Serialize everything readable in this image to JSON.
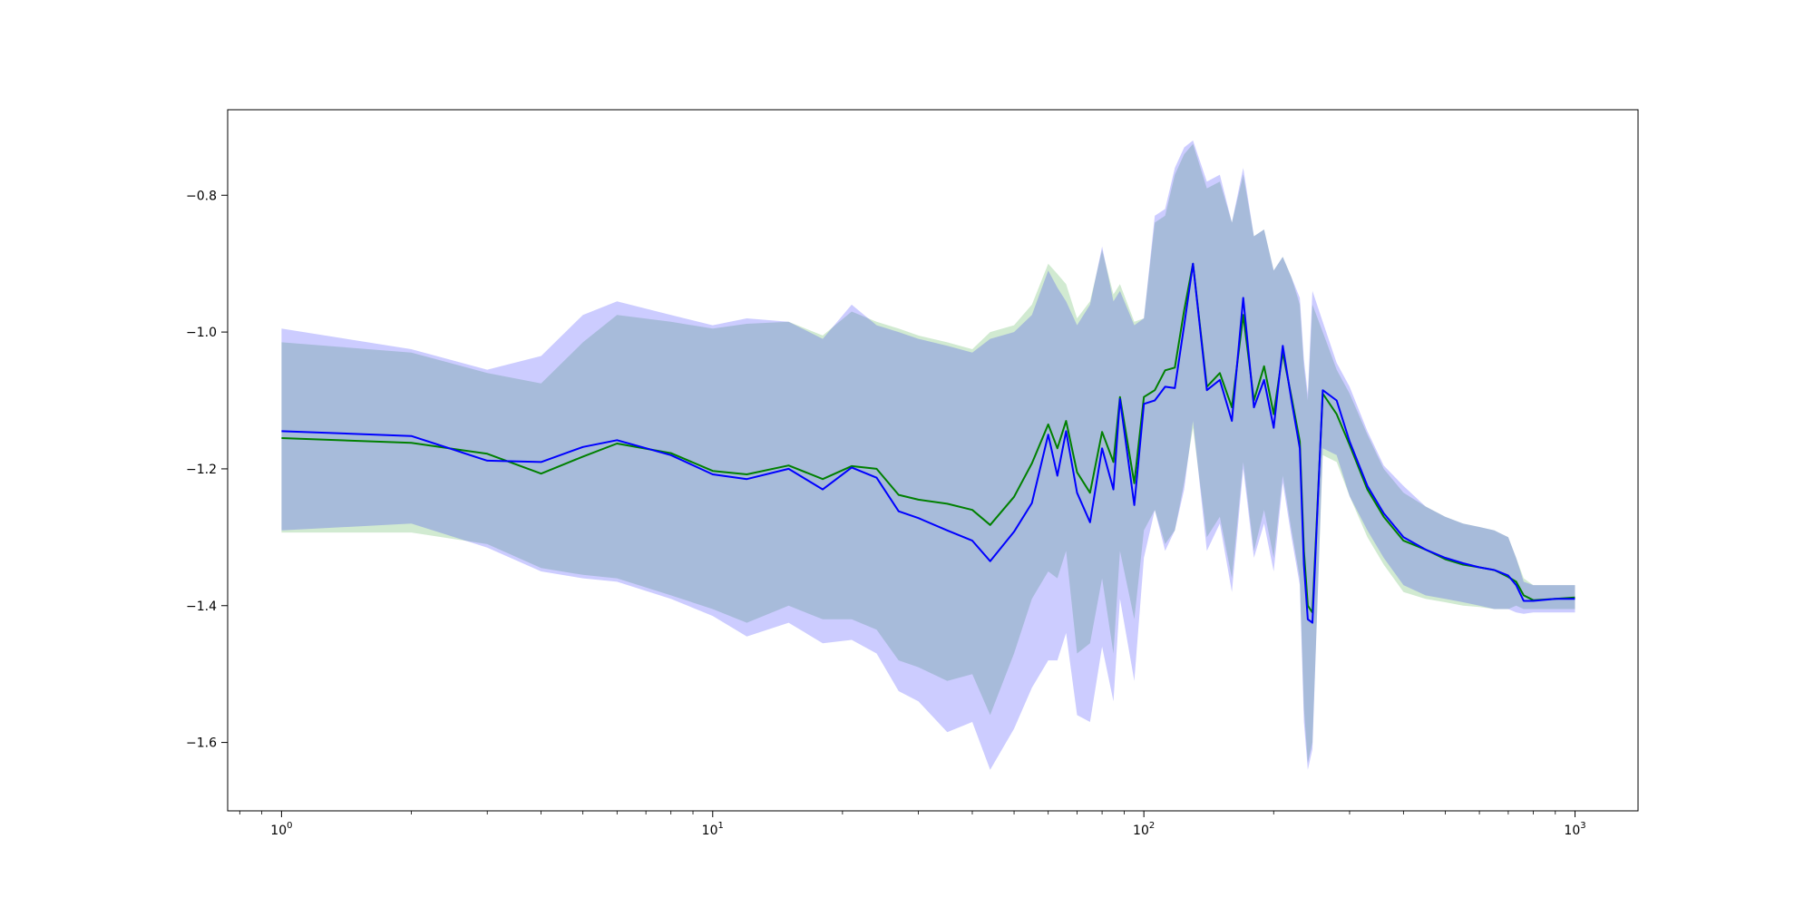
{
  "chart_data": {
    "type": "line",
    "title": "",
    "xlabel": "",
    "ylabel": "",
    "x_scale": "log",
    "xlim": [
      0.75,
      1400
    ],
    "ylim": [
      -1.7,
      -0.675
    ],
    "grid": false,
    "x_ticks": [
      {
        "value": 1,
        "base": "10",
        "exp": "0"
      },
      {
        "value": 10,
        "base": "10",
        "exp": "1"
      },
      {
        "value": 100,
        "base": "10",
        "exp": "2"
      },
      {
        "value": 1000,
        "base": "10",
        "exp": "3"
      }
    ],
    "y_ticks": [
      {
        "value": -0.8,
        "label": "−0.8"
      },
      {
        "value": -1.0,
        "label": "−1.0"
      },
      {
        "value": -1.2,
        "label": "−1.2"
      },
      {
        "value": -1.4,
        "label": "−1.4"
      },
      {
        "value": -1.6,
        "label": "−1.6"
      }
    ],
    "colors": {
      "green_line": "#008000",
      "green_band": "#2ca02c",
      "blue_line": "#0000ff",
      "blue_band": "#0000ff"
    },
    "series": [
      {
        "color": "#008000",
        "x": [
          1,
          2,
          3,
          4,
          5,
          6,
          8,
          10,
          12,
          15,
          18,
          21,
          24,
          27,
          30,
          35,
          40,
          44,
          50,
          55,
          60,
          63,
          66,
          70,
          75,
          80,
          85,
          88,
          95,
          100,
          106,
          112,
          118,
          124,
          130,
          140,
          150,
          160,
          170,
          180,
          190,
          200,
          210,
          220,
          230,
          235,
          240,
          246,
          260,
          280,
          300,
          330,
          360,
          400,
          450,
          500,
          550,
          600,
          650,
          700,
          730,
          760,
          800,
          900,
          1000
        ],
        "mean": [
          -1.155,
          -1.162,
          -1.178,
          -1.207,
          -1.182,
          -1.163,
          -1.177,
          -1.203,
          -1.208,
          -1.195,
          -1.215,
          -1.196,
          -1.2,
          -1.238,
          -1.245,
          -1.251,
          -1.26,
          -1.282,
          -1.241,
          -1.192,
          -1.135,
          -1.17,
          -1.13,
          -1.205,
          -1.235,
          -1.146,
          -1.19,
          -1.095,
          -1.221,
          -1.095,
          -1.085,
          -1.056,
          -1.052,
          -0.968,
          -0.9,
          -1.08,
          -1.06,
          -1.11,
          -0.975,
          -1.1,
          -1.05,
          -1.12,
          -1.03,
          -1.095,
          -1.16,
          -1.32,
          -1.4,
          -1.41,
          -1.09,
          -1.12,
          -1.165,
          -1.23,
          -1.27,
          -1.305,
          -1.318,
          -1.332,
          -1.34,
          -1.344,
          -1.348,
          -1.358,
          -1.365,
          -1.385,
          -1.392,
          -1.39,
          -1.388
        ],
        "upper": [
          -1.015,
          -1.03,
          -1.06,
          -1.075,
          -1.015,
          -0.975,
          -0.985,
          -0.995,
          -0.988,
          -0.985,
          -1.005,
          -0.97,
          -0.985,
          -0.995,
          -1.005,
          -1.015,
          -1.025,
          -1.0,
          -0.99,
          -0.96,
          -0.9,
          -0.915,
          -0.93,
          -0.98,
          -0.955,
          -0.88,
          -0.945,
          -0.93,
          -0.985,
          -0.98,
          -0.84,
          -0.83,
          -0.77,
          -0.74,
          -0.725,
          -0.79,
          -0.78,
          -0.84,
          -0.77,
          -0.86,
          -0.85,
          -0.91,
          -0.89,
          -0.92,
          -0.96,
          -1.05,
          -1.1,
          -0.96,
          -1.0,
          -1.055,
          -1.09,
          -1.15,
          -1.2,
          -1.235,
          -1.255,
          -1.27,
          -1.28,
          -1.285,
          -1.29,
          -1.3,
          -1.33,
          -1.36,
          -1.37,
          -1.37,
          -1.37
        ],
        "lower": [
          -1.293,
          -1.293,
          -1.31,
          -1.345,
          -1.355,
          -1.36,
          -1.385,
          -1.405,
          -1.425,
          -1.4,
          -1.42,
          -1.42,
          -1.435,
          -1.48,
          -1.49,
          -1.51,
          -1.5,
          -1.56,
          -1.47,
          -1.39,
          -1.35,
          -1.36,
          -1.32,
          -1.47,
          -1.455,
          -1.36,
          -1.47,
          -1.32,
          -1.42,
          -1.29,
          -1.26,
          -1.31,
          -1.29,
          -1.22,
          -1.14,
          -1.3,
          -1.27,
          -1.36,
          -1.19,
          -1.32,
          -1.26,
          -1.33,
          -1.21,
          -1.29,
          -1.36,
          -1.55,
          -1.63,
          -1.6,
          -1.18,
          -1.19,
          -1.24,
          -1.3,
          -1.34,
          -1.38,
          -1.39,
          -1.395,
          -1.4,
          -1.402,
          -1.405,
          -1.405,
          -1.4,
          -1.405,
          -1.405,
          -1.405,
          -1.405
        ]
      },
      {
        "color": "#0000ff",
        "x": [
          1,
          2,
          3,
          4,
          5,
          6,
          8,
          10,
          12,
          15,
          18,
          21,
          24,
          27,
          30,
          35,
          40,
          44,
          50,
          55,
          60,
          63,
          66,
          70,
          75,
          80,
          85,
          88,
          95,
          100,
          106,
          112,
          118,
          124,
          130,
          140,
          150,
          160,
          170,
          180,
          190,
          200,
          210,
          220,
          230,
          235,
          240,
          246,
          260,
          280,
          300,
          330,
          360,
          400,
          450,
          500,
          550,
          600,
          650,
          700,
          730,
          760,
          800,
          900,
          1000
        ],
        "mean": [
          -1.145,
          -1.152,
          -1.188,
          -1.19,
          -1.168,
          -1.158,
          -1.18,
          -1.208,
          -1.215,
          -1.2,
          -1.23,
          -1.198,
          -1.213,
          -1.262,
          -1.272,
          -1.29,
          -1.305,
          -1.335,
          -1.292,
          -1.25,
          -1.15,
          -1.21,
          -1.145,
          -1.235,
          -1.278,
          -1.17,
          -1.23,
          -1.098,
          -1.253,
          -1.105,
          -1.1,
          -1.08,
          -1.082,
          -0.99,
          -0.9,
          -1.085,
          -1.07,
          -1.13,
          -0.95,
          -1.11,
          -1.07,
          -1.14,
          -1.02,
          -1.1,
          -1.17,
          -1.34,
          -1.42,
          -1.425,
          -1.085,
          -1.1,
          -1.16,
          -1.225,
          -1.265,
          -1.3,
          -1.318,
          -1.33,
          -1.338,
          -1.344,
          -1.348,
          -1.356,
          -1.37,
          -1.393,
          -1.393,
          -1.39,
          -1.39
        ],
        "upper": [
          -0.995,
          -1.025,
          -1.055,
          -1.035,
          -0.975,
          -0.955,
          -0.975,
          -0.99,
          -0.98,
          -0.985,
          -1.01,
          -0.96,
          -0.99,
          -1.0,
          -1.01,
          -1.02,
          -1.03,
          -1.01,
          -1.0,
          -0.975,
          -0.91,
          -0.935,
          -0.955,
          -0.99,
          -0.96,
          -0.875,
          -0.955,
          -0.94,
          -0.99,
          -0.98,
          -0.83,
          -0.82,
          -0.76,
          -0.73,
          -0.72,
          -0.78,
          -0.77,
          -0.84,
          -0.76,
          -0.86,
          -0.85,
          -0.91,
          -0.89,
          -0.92,
          -0.95,
          -1.04,
          -1.09,
          -0.94,
          -0.985,
          -1.045,
          -1.08,
          -1.145,
          -1.195,
          -1.225,
          -1.255,
          -1.27,
          -1.28,
          -1.285,
          -1.29,
          -1.3,
          -1.33,
          -1.365,
          -1.37,
          -1.37,
          -1.37
        ],
        "lower": [
          -1.29,
          -1.28,
          -1.315,
          -1.35,
          -1.36,
          -1.365,
          -1.39,
          -1.415,
          -1.445,
          -1.425,
          -1.455,
          -1.45,
          -1.47,
          -1.525,
          -1.54,
          -1.585,
          -1.57,
          -1.64,
          -1.58,
          -1.52,
          -1.48,
          -1.48,
          -1.44,
          -1.56,
          -1.57,
          -1.46,
          -1.54,
          -1.39,
          -1.51,
          -1.33,
          -1.26,
          -1.32,
          -1.29,
          -1.23,
          -1.13,
          -1.32,
          -1.28,
          -1.38,
          -1.2,
          -1.33,
          -1.28,
          -1.35,
          -1.22,
          -1.3,
          -1.37,
          -1.57,
          -1.64,
          -1.61,
          -1.17,
          -1.18,
          -1.24,
          -1.29,
          -1.33,
          -1.37,
          -1.385,
          -1.39,
          -1.395,
          -1.4,
          -1.405,
          -1.405,
          -1.41,
          -1.412,
          -1.41,
          -1.41,
          -1.41
        ]
      }
    ]
  }
}
